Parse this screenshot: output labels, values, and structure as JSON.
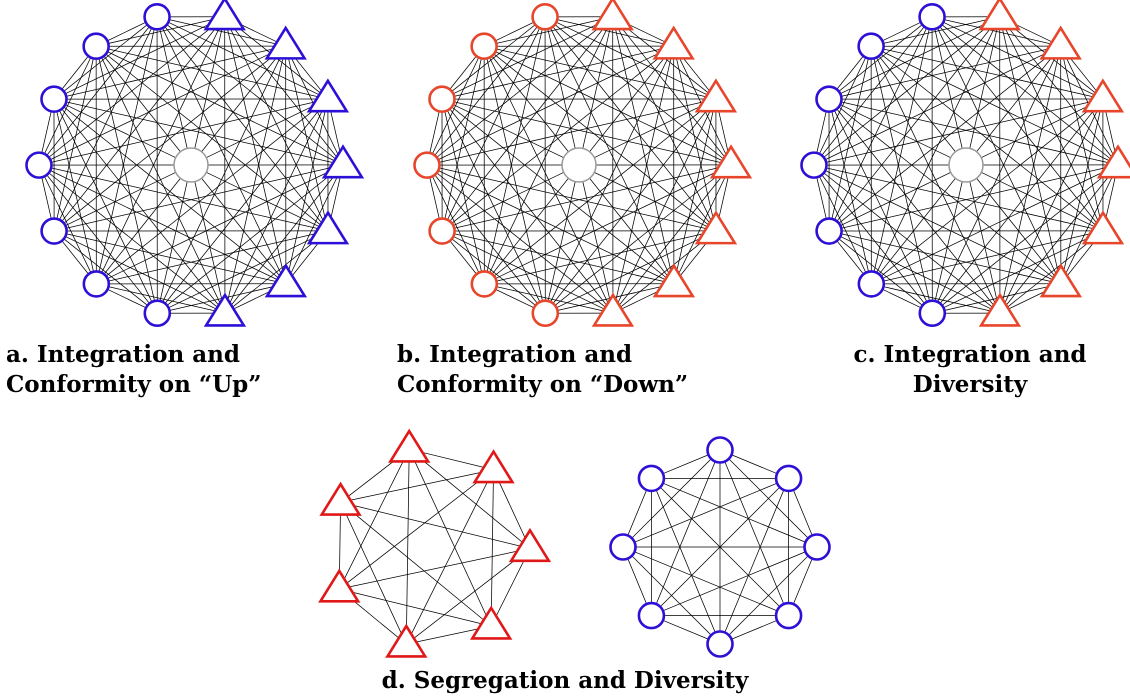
{
  "captions": {
    "a": {
      "line1": "a. Integration and",
      "line2": "Conformity on “Up”"
    },
    "b": {
      "line1": "b. Integration and",
      "line2": "Conformity on “Down”"
    },
    "c": {
      "line1": "c. Integration and",
      "line2": "Diversity"
    },
    "d": {
      "line1": "d. Segregation and Diversity"
    }
  },
  "colors": {
    "blue": "#2d10d8",
    "orange": "#e8462b",
    "red": "#e01818",
    "edge": "#000000",
    "center": "#999999"
  },
  "panels": [
    {
      "id": "a",
      "nodes": 14,
      "shapes": [
        "circle",
        "circle",
        "circle",
        "circle",
        "circle",
        "circle",
        "circle",
        "triangle",
        "triangle",
        "triangle",
        "triangle",
        "triangle",
        "triangle",
        "triangle"
      ],
      "color": "blue",
      "complete_graph": true,
      "center_node": true
    },
    {
      "id": "b",
      "nodes": 14,
      "shapes": [
        "circle",
        "circle",
        "circle",
        "circle",
        "circle",
        "circle",
        "circle",
        "triangle",
        "triangle",
        "triangle",
        "triangle",
        "triangle",
        "triangle",
        "triangle"
      ],
      "color": "orange",
      "complete_graph": true,
      "center_node": true
    },
    {
      "id": "c",
      "nodes": 14,
      "shapes": [
        "circle",
        "circle",
        "circle",
        "circle",
        "circle",
        "circle",
        "circle",
        "triangle",
        "triangle",
        "triangle",
        "triangle",
        "triangle",
        "triangle",
        "triangle"
      ],
      "colors": [
        "blue",
        "orange"
      ],
      "complete_graph": true,
      "center_node": true
    },
    {
      "id": "d1",
      "nodes": 7,
      "shape": "triangle",
      "color": "red",
      "complete_graph": true
    },
    {
      "id": "d2",
      "nodes": 8,
      "shape": "circle",
      "color": "blue",
      "complete_graph": true
    }
  ]
}
